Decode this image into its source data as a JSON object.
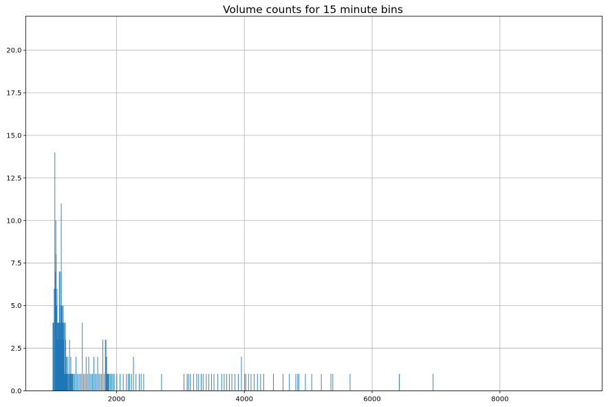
{
  "chart_data": {
    "type": "bar",
    "title": "Volume counts for 15 minute bins",
    "xlabel": "",
    "ylabel": "",
    "xlim": [
      580,
      9600
    ],
    "ylim": [
      0,
      22
    ],
    "x_ticks": [
      2000,
      4000,
      6000,
      8000
    ],
    "x_tick_labels": [
      "2000",
      "4000",
      "6000",
      "8000"
    ],
    "y_ticks": [
      0,
      2.5,
      5,
      7.5,
      10,
      12.5,
      15,
      17.5,
      20
    ],
    "y_tick_labels": [
      "0.0",
      "2.5",
      "5.0",
      "7.5",
      "10.0",
      "12.5",
      "15.0",
      "17.5",
      "20.0"
    ],
    "grid": true,
    "bar_color": "#1f77b4",
    "bin_width": 8,
    "x": [
      1000,
      1010,
      1020,
      1030,
      1035,
      1040,
      1045,
      1050,
      1055,
      1060,
      1065,
      1070,
      1075,
      1080,
      1085,
      1090,
      1095,
      1100,
      1105,
      1110,
      1115,
      1120,
      1125,
      1130,
      1135,
      1140,
      1145,
      1150,
      1155,
      1160,
      1165,
      1170,
      1175,
      1180,
      1185,
      1190,
      1195,
      1200,
      1205,
      1210,
      1215,
      1220,
      1225,
      1230,
      1240,
      1250,
      1260,
      1270,
      1280,
      1290,
      1300,
      1310,
      1320,
      1340,
      1360,
      1380,
      1400,
      1420,
      1440,
      1460,
      1480,
      1500,
      1520,
      1540,
      1560,
      1580,
      1600,
      1620,
      1640,
      1660,
      1680,
      1700,
      1720,
      1740,
      1760,
      1780,
      1800,
      1820,
      1830,
      1840,
      1850,
      1860,
      1870,
      1880,
      1900,
      1920,
      1940,
      1960,
      2000,
      2050,
      2100,
      2150,
      2180,
      2200,
      2230,
      2260,
      2300,
      2350,
      2380,
      2420,
      2700,
      3050,
      3100,
      3120,
      3150,
      3200,
      3250,
      3280,
      3320,
      3350,
      3400,
      3440,
      3480,
      3520,
      3580,
      3640,
      3680,
      3720,
      3760,
      3800,
      3850,
      3900,
      3950,
      4000,
      4020,
      4060,
      4100,
      4150,
      4200,
      4250,
      4300,
      4450,
      4600,
      4700,
      4800,
      4830,
      4850,
      4950,
      5050,
      5200,
      5350,
      5380,
      5650,
      6420,
      6950
    ],
    "values": [
      4,
      4,
      6,
      14,
      7,
      6,
      10,
      8,
      5,
      3,
      6,
      4,
      3,
      4,
      3,
      4,
      4,
      7,
      7,
      3,
      4,
      5,
      7,
      11,
      5,
      3,
      4,
      5,
      3,
      5,
      3,
      4,
      1,
      4,
      1,
      1,
      4,
      3,
      1,
      2,
      1,
      1,
      1,
      2,
      1,
      1,
      3,
      1,
      2,
      1,
      1,
      1,
      1,
      1,
      2,
      1,
      1,
      1,
      1,
      4,
      1,
      1,
      2,
      1,
      2,
      1,
      1,
      1,
      2,
      1,
      1,
      2,
      1,
      1,
      1,
      3,
      1,
      3,
      3,
      2,
      1,
      1,
      1,
      1,
      1,
      1,
      1,
      1,
      1,
      1,
      1,
      1,
      1,
      1,
      1,
      2,
      1,
      1,
      1,
      1,
      1,
      1,
      1,
      1,
      1,
      1,
      1,
      1,
      1,
      1,
      1,
      1,
      1,
      1,
      1,
      1,
      1,
      1,
      1,
      1,
      1,
      1,
      2,
      1,
      1,
      1,
      1,
      1,
      1,
      1,
      1,
      1,
      1,
      1,
      1,
      1,
      1,
      1,
      1,
      1,
      1,
      1,
      1,
      1,
      1
    ]
  }
}
